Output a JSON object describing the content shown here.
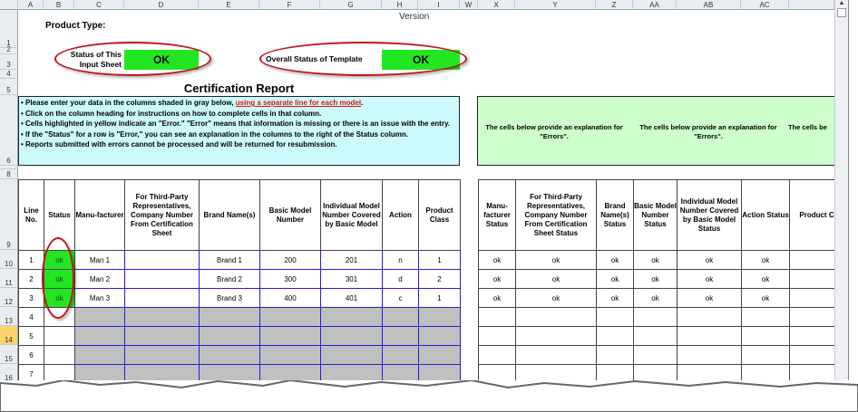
{
  "columns_left": [
    "A",
    "B",
    "C",
    "D",
    "E",
    "F",
    "G",
    "H",
    "I"
  ],
  "columns_right": [
    "W",
    "X",
    "Y",
    "Z",
    "AA",
    "AB",
    "AC",
    ""
  ],
  "row_numbers": [
    "1",
    "2",
    "3",
    "4",
    "5",
    "6",
    "8",
    "9",
    "10",
    "11",
    "12",
    "13",
    "14",
    "15",
    "16"
  ],
  "top": {
    "product_type_label": "Product Type:",
    "version_label": "Version",
    "status_input_label": "Status of This Input Sheet",
    "status_input_value": "OK",
    "overall_status_label": "Overall Status of Template",
    "overall_status_value": "OK",
    "title": "Certification Report"
  },
  "instructions": {
    "line1": "• Please enter your data in the columns shaded in gray below, ",
    "line1_link": "using a separate line for each model",
    "line1_end": ".",
    "line2": "• Click on the column heading for instructions on how to complete cells in that column.",
    "line3": "• Cells highlighted in yellow indicate an \"Error.\"  \"Error\" means that information is missing or there is an issue with the entry.",
    "line4": "• If the \"Status\" for a row is \"Error,\" you can see an explanation in the columns to the right of the Status column.",
    "line5": "• Reports submitted with errors cannot be processed and will be returned for resubmission."
  },
  "explanation": {
    "text1": "The cells below provide an explanation for \"Errors\".",
    "text2": "The cells below provide an explanation for \"Errors\".",
    "text3": "The cells be"
  },
  "table_left": {
    "headers": [
      "Line No.",
      "Status",
      "Manu-facturer",
      "For Third-Party Representatives, Company Number From Certification Sheet",
      "Brand Name(s)",
      "Basic Model Number",
      "Individual Model Number Covered by Basic Model",
      "Action",
      "Product Class"
    ],
    "rows": [
      [
        "1",
        "ok",
        "Man 1",
        "",
        "Brand 1",
        "200",
        "201",
        "n",
        "1"
      ],
      [
        "2",
        "ok",
        "Man 2",
        "",
        "Brand 2",
        "300",
        "301",
        "d",
        "2"
      ],
      [
        "3",
        "ok",
        "Man 3",
        "",
        "Brand 3",
        "400",
        "401",
        "c",
        "1"
      ],
      [
        "4",
        "",
        "",
        "",
        "",
        "",
        "",
        "",
        ""
      ],
      [
        "5",
        "",
        "",
        "",
        "",
        "",
        "",
        "",
        ""
      ],
      [
        "6",
        "",
        "",
        "",
        "",
        "",
        "",
        "",
        ""
      ],
      [
        "7",
        "",
        "",
        "",
        "",
        "",
        "",
        "",
        ""
      ]
    ]
  },
  "table_right": {
    "headers": [
      "Manu-facturer Status",
      "For Third-Party Representatives, Company Number From Certification Sheet Status",
      "Brand Name(s) Status",
      "Basic Model Number Status",
      "Individual Model Number Covered by Basic Model Status",
      "Action Status",
      "Product C"
    ],
    "rows": [
      [
        "ok",
        "ok",
        "ok",
        "ok",
        "ok",
        "ok",
        ""
      ],
      [
        "ok",
        "ok",
        "ok",
        "ok",
        "ok",
        "ok",
        ""
      ],
      [
        "ok",
        "ok",
        "ok",
        "ok",
        "ok",
        "ok",
        ""
      ],
      [
        "",
        "",
        "",
        "",
        "",
        "",
        ""
      ],
      [
        "",
        "",
        "",
        "",
        "",
        "",
        ""
      ],
      [
        "",
        "",
        "",
        "",
        "",
        "",
        ""
      ],
      [
        "",
        "",
        "",
        "",
        "",
        "",
        ""
      ]
    ]
  },
  "colors": {
    "ok_green": "#22e622",
    "instructions_bg": "#ccfafc",
    "explanation_bg": "#ccffcc",
    "input_gray": "#c0c0c0",
    "highlight_red": "#c0141c",
    "grid_blue": "#2020d8"
  }
}
